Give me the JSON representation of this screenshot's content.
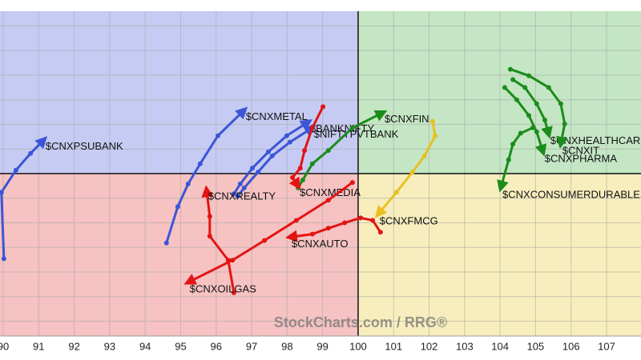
{
  "chart_data": {
    "type": "rrg",
    "xlim": [
      89.91,
      107.97
    ],
    "ylim": [
      96.7,
      103.3
    ],
    "xticks": [
      90,
      91,
      92,
      93,
      94,
      95,
      96,
      97,
      98,
      99,
      100,
      101,
      102,
      103,
      104,
      105,
      106,
      107
    ],
    "yticks": [
      97,
      97.5,
      98,
      98.5,
      99,
      99.5,
      100,
      100.5,
      101,
      101.5,
      102,
      102.5,
      103
    ],
    "center": {
      "x": 100,
      "y": 100
    },
    "quadrant_colors": {
      "top_left": "#c6cbf3",
      "top_right": "#c4e6c4",
      "bottom_left": "#f6c2c2",
      "bottom_right": "#f8eebd"
    },
    "grid": true,
    "watermark": "StockCharts.com / RRG®",
    "series": [
      {
        "name": "$CNXPSUBANK",
        "color": "#3b55d6",
        "x": [
          90.02,
          89.95,
          90.36,
          90.77,
          91.15
        ],
        "values": [
          98.27,
          99.62,
          100.07,
          100.41,
          100.69
        ]
      },
      {
        "name": "$CNXMETAL",
        "color": "#3b55d6",
        "x": [
          94.6,
          94.92,
          95.21,
          95.55,
          96.05,
          96.79
        ],
        "values": [
          98.59,
          99.33,
          99.79,
          100.2,
          100.77,
          101.29
        ]
      },
      {
        "name": "$BANKNIFTY",
        "color": "#3b55d6",
        "x": [
          96.5,
          96.68,
          97.02,
          97.47,
          97.99,
          98.6
        ],
        "values": [
          99.59,
          99.79,
          100.11,
          100.44,
          100.77,
          101.05
        ]
      },
      {
        "name": "$NIFTYPVTBANK",
        "color": "#3b55d6",
        "x": [
          96.61,
          96.79,
          97.18,
          97.58,
          98.08,
          98.71
        ],
        "values": [
          99.54,
          99.71,
          100.03,
          100.36,
          100.64,
          100.93
        ]
      },
      {
        "name": "$CNXFIN",
        "color": "#1b8c1b",
        "x": [
          98.31,
          98.44,
          98.71,
          99.16,
          99.84,
          100.7
        ],
        "values": [
          99.71,
          99.87,
          100.2,
          100.47,
          100.93,
          101.24
        ]
      },
      {
        "name": "$CNXMEDIA",
        "color": "#e31414",
        "x": [
          99.01,
          98.71,
          98.49,
          98.37,
          98.15,
          98.31
        ],
        "values": [
          101.36,
          100.93,
          100.47,
          100.11,
          99.92,
          99.75
        ]
      },
      {
        "name": "$CNXREALTY",
        "color": "#e31414",
        "x": [
          96.5,
          96.34,
          95.82,
          95.82,
          95.73
        ],
        "values": [
          97.58,
          98.24,
          98.73,
          99.13,
          99.67
        ]
      },
      {
        "name": "$CNXOILGAS",
        "color": "#e31414",
        "x": [
          99.84,
          99.16,
          98.26,
          97.36,
          96.46,
          95.21
        ],
        "values": [
          99.82,
          99.46,
          99.05,
          98.64,
          98.24,
          97.79
        ]
      },
      {
        "name": "$CNXAUTO",
        "color": "#e31414",
        "x": [
          100.63,
          100.41,
          100.07,
          99.62,
          99.16,
          98.71,
          98.08
        ],
        "values": [
          98.81,
          99.05,
          99.1,
          99.0,
          98.89,
          98.77,
          98.71
        ]
      },
      {
        "name": "$CNXFMCG",
        "color": "#e8c020",
        "x": [
          102.1,
          102.17,
          101.87,
          101.53,
          101.08,
          100.56
        ],
        "values": [
          101.06,
          100.77,
          100.36,
          100.03,
          99.62,
          99.17
        ]
      },
      {
        "name": "$CNXHEALTHCARE",
        "color": "#1b8c1b",
        "x": [
          104.36,
          104.7,
          105.03,
          105.26,
          105.37
        ],
        "values": [
          101.91,
          101.75,
          101.42,
          101.09,
          100.8
        ]
      },
      {
        "name": "$CNXIT",
        "color": "#1b8c1b",
        "x": [
          104.29,
          104.81,
          105.37,
          105.71,
          105.82,
          105.71
        ],
        "values": [
          102.12,
          101.99,
          101.75,
          101.42,
          101.01,
          100.6
        ]
      },
      {
        "name": "$CNXPHARMA",
        "color": "#1b8c1b",
        "x": [
          104.13,
          104.47,
          104.81,
          105.03,
          105.21
        ],
        "values": [
          101.75,
          101.5,
          101.18,
          100.85,
          100.44
        ]
      },
      {
        "name": "$CNXCONSUMERDURABLES",
        "color": "#1b8c1b",
        "x": [
          104.92,
          104.58,
          104.36,
          104.24,
          104.02
        ],
        "values": [
          100.93,
          100.82,
          100.6,
          100.28,
          99.71
        ]
      }
    ]
  }
}
